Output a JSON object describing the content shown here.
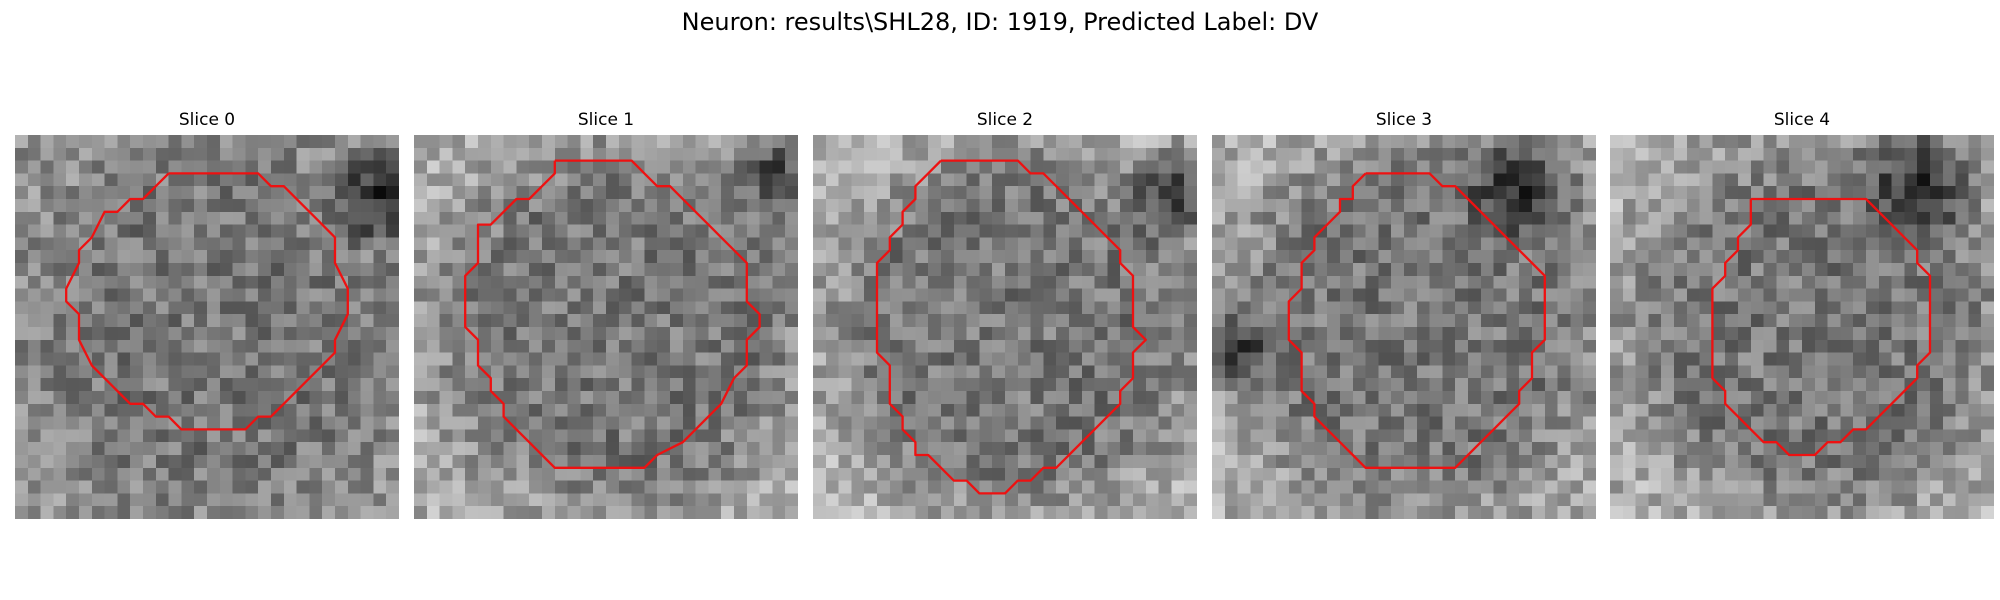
{
  "figure": {
    "title": "Neuron: results\\SHL28, ID: 1919, Predicted Label: DV",
    "contour_color": "#ee1111",
    "colormap": "gray",
    "grid_size": 30
  },
  "panels": [
    {
      "title": "Slice 0",
      "contour": [
        [
          12,
          3
        ],
        [
          19,
          3
        ],
        [
          20,
          4
        ],
        [
          21,
          4
        ],
        [
          24,
          7
        ],
        [
          25,
          8
        ],
        [
          25,
          9
        ],
        [
          25,
          10
        ],
        [
          26,
          12
        ],
        [
          26,
          13
        ],
        [
          26,
          14
        ],
        [
          25,
          16
        ],
        [
          25,
          17
        ],
        [
          24,
          18
        ],
        [
          23,
          19
        ],
        [
          22,
          20
        ],
        [
          21,
          21
        ],
        [
          20,
          22
        ],
        [
          19,
          22
        ],
        [
          18,
          23
        ],
        [
          13,
          23
        ],
        [
          12,
          22
        ],
        [
          11,
          22
        ],
        [
          10,
          21
        ],
        [
          9,
          21
        ],
        [
          8,
          20
        ],
        [
          7,
          19
        ],
        [
          6,
          18
        ],
        [
          5,
          16
        ],
        [
          5,
          15
        ],
        [
          5,
          14
        ],
        [
          4,
          13
        ],
        [
          4,
          12
        ],
        [
          5,
          10
        ],
        [
          5,
          9
        ],
        [
          6,
          8
        ],
        [
          7,
          6
        ],
        [
          8,
          6
        ],
        [
          9,
          5
        ],
        [
          10,
          5
        ],
        [
          11,
          4
        ],
        [
          12,
          3
        ]
      ]
    },
    {
      "title": "Slice 1",
      "contour": [
        [
          11,
          2
        ],
        [
          17,
          2
        ],
        [
          18,
          3
        ],
        [
          19,
          4
        ],
        [
          20,
          4
        ],
        [
          22,
          6
        ],
        [
          23,
          7
        ],
        [
          24,
          8
        ],
        [
          25,
          9
        ],
        [
          26,
          10
        ],
        [
          26,
          11
        ],
        [
          26,
          12
        ],
        [
          26,
          13
        ],
        [
          27,
          14
        ],
        [
          27,
          15
        ],
        [
          26,
          16
        ],
        [
          26,
          17
        ],
        [
          26,
          18
        ],
        [
          25,
          19
        ],
        [
          24,
          21
        ],
        [
          23,
          22
        ],
        [
          22,
          23
        ],
        [
          21,
          24
        ],
        [
          19,
          25
        ],
        [
          18,
          26
        ],
        [
          15,
          26
        ],
        [
          14,
          26
        ],
        [
          13,
          26
        ],
        [
          11,
          26
        ],
        [
          10,
          25
        ],
        [
          9,
          24
        ],
        [
          8,
          23
        ],
        [
          7,
          22
        ],
        [
          7,
          21
        ],
        [
          6,
          20
        ],
        [
          6,
          19
        ],
        [
          5,
          18
        ],
        [
          5,
          17
        ],
        [
          5,
          16
        ],
        [
          4,
          15
        ],
        [
          4,
          14
        ],
        [
          4,
          13
        ],
        [
          4,
          12
        ],
        [
          4,
          11
        ],
        [
          5,
          10
        ],
        [
          5,
          9
        ],
        [
          5,
          8
        ],
        [
          5,
          7
        ],
        [
          6,
          7
        ],
        [
          7,
          6
        ],
        [
          8,
          5
        ],
        [
          9,
          5
        ],
        [
          10,
          4
        ],
        [
          11,
          3
        ],
        [
          11,
          2
        ]
      ]
    },
    {
      "title": "Slice 2",
      "contour": [
        [
          10,
          2
        ],
        [
          16,
          2
        ],
        [
          17,
          3
        ],
        [
          18,
          3
        ],
        [
          19,
          4
        ],
        [
          20,
          5
        ],
        [
          21,
          6
        ],
        [
          22,
          7
        ],
        [
          23,
          8
        ],
        [
          24,
          9
        ],
        [
          24,
          10
        ],
        [
          25,
          11
        ],
        [
          25,
          12
        ],
        [
          25,
          13
        ],
        [
          25,
          14
        ],
        [
          25,
          15
        ],
        [
          26,
          16
        ],
        [
          25,
          17
        ],
        [
          25,
          18
        ],
        [
          25,
          19
        ],
        [
          24,
          20
        ],
        [
          24,
          21
        ],
        [
          23,
          22
        ],
        [
          22,
          23
        ],
        [
          21,
          24
        ],
        [
          20,
          25
        ],
        [
          19,
          26
        ],
        [
          18,
          26
        ],
        [
          17,
          27
        ],
        [
          16,
          27
        ],
        [
          15,
          28
        ],
        [
          13,
          28
        ],
        [
          12,
          27
        ],
        [
          11,
          27
        ],
        [
          10,
          26
        ],
        [
          9,
          25
        ],
        [
          8,
          25
        ],
        [
          8,
          24
        ],
        [
          7,
          23
        ],
        [
          7,
          22
        ],
        [
          6,
          21
        ],
        [
          6,
          20
        ],
        [
          6,
          19
        ],
        [
          6,
          18
        ],
        [
          5,
          17
        ],
        [
          5,
          16
        ],
        [
          5,
          15
        ],
        [
          5,
          14
        ],
        [
          5,
          13
        ],
        [
          5,
          12
        ],
        [
          5,
          11
        ],
        [
          5,
          10
        ],
        [
          6,
          9
        ],
        [
          6,
          8
        ],
        [
          7,
          7
        ],
        [
          7,
          6
        ],
        [
          8,
          5
        ],
        [
          8,
          4
        ],
        [
          9,
          3
        ],
        [
          10,
          2
        ]
      ]
    },
    {
      "title": "Slice 3",
      "contour": [
        [
          12,
          3
        ],
        [
          17,
          3
        ],
        [
          18,
          4
        ],
        [
          19,
          4
        ],
        [
          20,
          5
        ],
        [
          21,
          6
        ],
        [
          22,
          7
        ],
        [
          23,
          8
        ],
        [
          24,
          9
        ],
        [
          25,
          10
        ],
        [
          26,
          11
        ],
        [
          26,
          12
        ],
        [
          26,
          13
        ],
        [
          26,
          14
        ],
        [
          26,
          15
        ],
        [
          26,
          16
        ],
        [
          25,
          17
        ],
        [
          25,
          18
        ],
        [
          25,
          19
        ],
        [
          24,
          20
        ],
        [
          24,
          21
        ],
        [
          23,
          22
        ],
        [
          22,
          23
        ],
        [
          21,
          24
        ],
        [
          20,
          25
        ],
        [
          19,
          26
        ],
        [
          18,
          26
        ],
        [
          12,
          26
        ],
        [
          11,
          25
        ],
        [
          10,
          24
        ],
        [
          9,
          23
        ],
        [
          8,
          22
        ],
        [
          8,
          21
        ],
        [
          7,
          20
        ],
        [
          7,
          19
        ],
        [
          7,
          18
        ],
        [
          7,
          17
        ],
        [
          6,
          16
        ],
        [
          6,
          15
        ],
        [
          6,
          14
        ],
        [
          6,
          13
        ],
        [
          7,
          12
        ],
        [
          7,
          11
        ],
        [
          7,
          10
        ],
        [
          8,
          9
        ],
        [
          8,
          8
        ],
        [
          9,
          7
        ],
        [
          10,
          6
        ],
        [
          10,
          5
        ],
        [
          11,
          5
        ],
        [
          11,
          4
        ],
        [
          12,
          3
        ]
      ]
    },
    {
      "title": "Slice 4",
      "contour": [
        [
          11,
          5
        ],
        [
          20,
          5
        ],
        [
          21,
          6
        ],
        [
          22,
          7
        ],
        [
          23,
          8
        ],
        [
          24,
          9
        ],
        [
          24,
          10
        ],
        [
          25,
          11
        ],
        [
          25,
          12
        ],
        [
          25,
          13
        ],
        [
          25,
          14
        ],
        [
          25,
          15
        ],
        [
          25,
          16
        ],
        [
          25,
          17
        ],
        [
          24,
          18
        ],
        [
          24,
          19
        ],
        [
          23,
          20
        ],
        [
          22,
          21
        ],
        [
          21,
          22
        ],
        [
          20,
          23
        ],
        [
          19,
          23
        ],
        [
          18,
          24
        ],
        [
          17,
          24
        ],
        [
          16,
          25
        ],
        [
          14,
          25
        ],
        [
          13,
          24
        ],
        [
          12,
          24
        ],
        [
          11,
          23
        ],
        [
          10,
          22
        ],
        [
          9,
          21
        ],
        [
          9,
          20
        ],
        [
          8,
          19
        ],
        [
          8,
          18
        ],
        [
          8,
          17
        ],
        [
          8,
          16
        ],
        [
          8,
          15
        ],
        [
          8,
          14
        ],
        [
          8,
          13
        ],
        [
          8,
          12
        ],
        [
          9,
          11
        ],
        [
          9,
          10
        ],
        [
          10,
          9
        ],
        [
          10,
          8
        ],
        [
          11,
          7
        ],
        [
          11,
          6
        ],
        [
          11,
          5
        ]
      ]
    }
  ]
}
